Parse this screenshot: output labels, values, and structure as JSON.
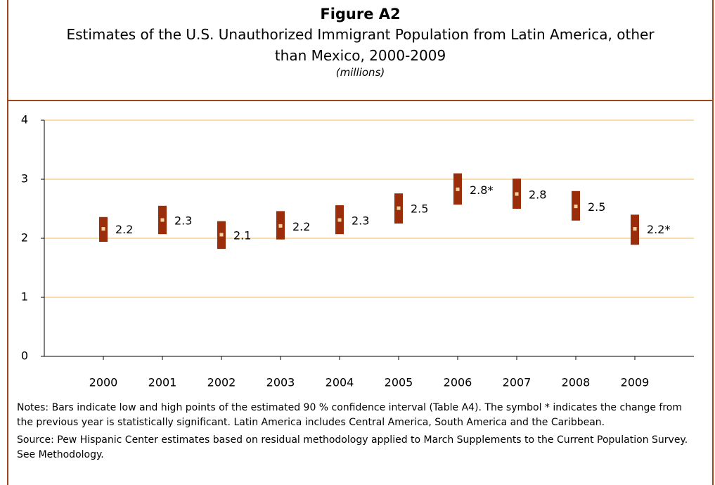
{
  "chart_data": {
    "type": "range",
    "title": "Figure A2",
    "subtitle": "Estimates of the U.S. Unauthorized Immigrant Population from Latin America, other than Mexico, 2000-2009",
    "unit": "(millions)",
    "categories": [
      "2000",
      "2001",
      "2002",
      "2003",
      "2004",
      "2005",
      "2006",
      "2007",
      "2008",
      "2009"
    ],
    "values": [
      2.16,
      2.31,
      2.06,
      2.21,
      2.31,
      2.51,
      2.83,
      2.75,
      2.54,
      2.16
    ],
    "value_labels": [
      "2.2",
      "2.3",
      "2.1",
      "2.2",
      "2.3",
      "2.5",
      "2.8*",
      "2.8",
      "2.5",
      "2.2*"
    ],
    "low": [
      1.94,
      2.07,
      1.82,
      1.98,
      2.07,
      2.25,
      2.57,
      2.5,
      2.3,
      1.89
    ],
    "high": [
      2.36,
      2.55,
      2.29,
      2.46,
      2.56,
      2.76,
      3.1,
      3.01,
      2.8,
      2.4
    ],
    "color": "#9b2d0b",
    "point_color": "#f6d7a4",
    "ylim": [
      0,
      4
    ],
    "yticks": [
      0,
      1,
      2,
      3,
      4
    ],
    "grid": true,
    "notes": "Notes: Bars indicate low and high points of the estimated 90 % confidence interval (Table A4). The symbol * indicates the change from the previous year is statistically significant. Latin America includes Central America, South America and the Caribbean.",
    "source": "Source: Pew Hispanic Center estimates based on residual methodology applied to March Supplements to the Current Population Survey. See Methodology."
  }
}
